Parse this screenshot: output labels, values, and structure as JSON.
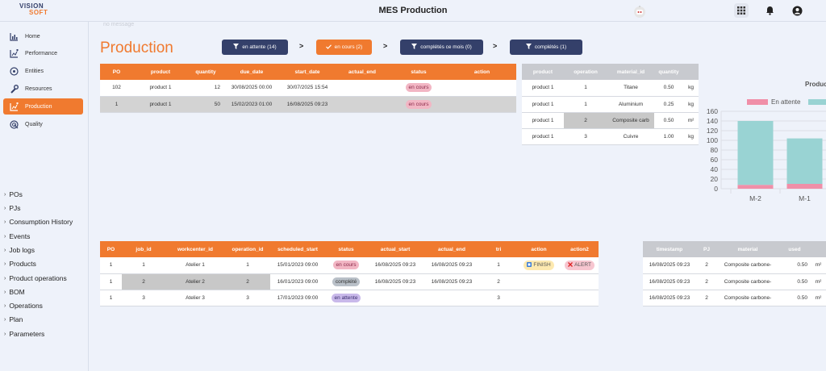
{
  "app": {
    "title": "MES Production",
    "logo_line1": "VISION",
    "logo_line2": "SOFT"
  },
  "icons": [
    "bar-chart-icon",
    "chart-plus-icon",
    "target-icon",
    "wrench-icon",
    "chart-plus-icon",
    "radar-icon",
    "grid-icon",
    "bell-icon",
    "user-icon",
    "filter-icon",
    "check-icon",
    "robot-icon"
  ],
  "colors": {
    "accent": "#f07a2f",
    "dark": "#34406a",
    "teal": "#99d3d3",
    "pink": "#f08fa8"
  },
  "sidebar": {
    "items": [
      {
        "label": "Home"
      },
      {
        "label": "Performance"
      },
      {
        "label": "Entities"
      },
      {
        "label": "Resources"
      },
      {
        "label": "Production"
      },
      {
        "label": "Quality"
      }
    ],
    "links": [
      {
        "label": "POs"
      },
      {
        "label": "PJs"
      },
      {
        "label": "Consumption History"
      },
      {
        "label": "Events"
      },
      {
        "label": "Job logs"
      },
      {
        "label": "Products"
      },
      {
        "label": "Product operations"
      },
      {
        "label": "BOM"
      },
      {
        "label": "Operations"
      },
      {
        "label": "Plan"
      },
      {
        "label": "Parameters"
      }
    ]
  },
  "page": {
    "title": "Production",
    "breadcrumb": "no message"
  },
  "filters": [
    {
      "label": "en attente (14)"
    },
    {
      "label": "en cours (2)"
    },
    {
      "label": "complétés ce mois (0)"
    },
    {
      "label": "complétés (1)"
    }
  ],
  "arrow": ">",
  "po_table": {
    "headers": [
      "PO",
      "product",
      "quantity",
      "due_date",
      "start_date",
      "actual_end",
      "status",
      "action"
    ],
    "rows": [
      [
        "102",
        "product 1",
        "12",
        "30/08/2025 00:00",
        "30/07/2025 15:54",
        "",
        "en cours",
        ""
      ],
      [
        "1",
        "product 1",
        "50",
        "15/02/2023 01:00",
        "16/08/2025 09:23",
        "",
        "en cours",
        ""
      ]
    ]
  },
  "bom_table": {
    "headers": [
      "product",
      "operation",
      "material_id",
      "quantity",
      ""
    ],
    "rows": [
      [
        "product 1",
        "1",
        "Titane",
        "0.50",
        "kg"
      ],
      [
        "product 1",
        "1",
        "Aluminium",
        "0.25",
        "kg"
      ],
      [
        "product 1",
        "2",
        "Composite carb",
        "0.50",
        "m²"
      ],
      [
        "product 1",
        "3",
        "Cuivre",
        "1.00",
        "kg"
      ]
    ]
  },
  "job_table": {
    "headers": [
      "PO",
      "job_id",
      "workcenter_id",
      "operation_id",
      "scheduled_start",
      "status",
      "actual_start",
      "actual_end",
      "tri",
      "action",
      "action2"
    ],
    "rows": [
      [
        "1",
        "1",
        "Atelier 1",
        "1",
        "15/01/2023 09:00",
        "en cours",
        "16/08/2025 09:23",
        "16/08/2025 09:23",
        "1",
        "FINISH",
        "ALERT"
      ],
      [
        "1",
        "2",
        "Atelier 2",
        "2",
        "16/01/2023 09:00",
        "complété",
        "16/08/2025 09:23",
        "16/08/2025 09:23",
        "2",
        "",
        ""
      ],
      [
        "1",
        "3",
        "Atelier 3",
        "3",
        "17/01/2023 09:00",
        "en attente",
        "",
        "",
        "3",
        "",
        ""
      ]
    ]
  },
  "consumption_table": {
    "headers": [
      "timestamp",
      "PJ",
      "material",
      "used",
      ""
    ],
    "rows": [
      [
        "16/08/2025 09:23",
        "2",
        "Composite carbone-",
        "0.50",
        "m²"
      ],
      [
        "16/08/2025 09:23",
        "2",
        "Composite carbone-",
        "0.50",
        "m²"
      ],
      [
        "16/08/2025 09:23",
        "2",
        "Composite carbone-",
        "0.50",
        "m²"
      ]
    ]
  },
  "chart_data": {
    "type": "bar",
    "title": "Produc",
    "stacked": true,
    "categories": [
      "M-2",
      "M-1"
    ],
    "series": [
      {
        "name": "En attente",
        "color": "#f08fa8",
        "values": [
          8,
          10
        ]
      },
      {
        "name": "",
        "color": "#99d3d3",
        "values": [
          132,
          94
        ]
      }
    ],
    "ylim": [
      0,
      160
    ],
    "yticks": [
      0,
      20,
      40,
      60,
      80,
      100,
      120,
      140,
      160
    ],
    "grid": true,
    "legend": "top"
  }
}
